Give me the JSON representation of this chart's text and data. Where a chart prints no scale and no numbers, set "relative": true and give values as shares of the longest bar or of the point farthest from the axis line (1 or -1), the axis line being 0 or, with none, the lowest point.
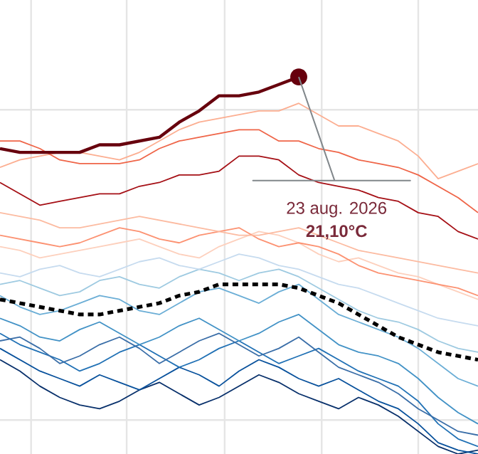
{
  "chart_data": {
    "type": "line",
    "relative": true,
    "grid": true,
    "categories": [
      null,
      null,
      null,
      null,
      null,
      null,
      null,
      null,
      null,
      null,
      null,
      null,
      null,
      null,
      null,
      null,
      null,
      null,
      null,
      null,
      null,
      null,
      null,
      null,
      null
    ],
    "series": [
      {
        "color": "#08306b",
        "values": [
          0.25,
          0.22,
          0.18,
          0.15,
          0.13,
          0.12,
          0.14,
          0.17,
          0.19,
          0.16,
          0.13,
          0.15,
          0.18,
          0.21,
          0.19,
          0.16,
          0.14,
          0.12,
          0.15,
          0.13,
          0.1,
          0.06,
          0.02,
          0.0,
          0.01
        ]
      },
      {
        "color": "#08519c",
        "values": [
          0.28,
          0.25,
          0.22,
          0.2,
          0.18,
          0.21,
          0.19,
          0.17,
          0.2,
          0.23,
          0.21,
          0.18,
          0.22,
          0.25,
          0.23,
          0.2,
          0.18,
          0.2,
          0.17,
          0.14,
          0.12,
          0.08,
          0.03,
          0.01,
          0.0
        ]
      },
      {
        "color": "#2171b5",
        "values": [
          0.32,
          0.29,
          0.27,
          0.25,
          0.22,
          0.24,
          0.27,
          0.29,
          0.26,
          0.23,
          0.25,
          0.28,
          0.3,
          0.27,
          0.24,
          0.26,
          0.28,
          0.25,
          0.22,
          0.2,
          0.18,
          0.14,
          0.08,
          0.04,
          0.02
        ]
      },
      {
        "color": "#3a6ea8",
        "values": [
          0.3,
          0.31,
          0.28,
          0.24,
          0.26,
          0.29,
          0.31,
          0.28,
          0.24,
          0.27,
          0.3,
          0.32,
          0.29,
          0.26,
          0.28,
          0.31,
          0.27,
          0.23,
          0.21,
          0.19,
          0.16,
          0.12,
          0.09,
          0.06,
          0.05
        ]
      },
      {
        "color": "#4292c6",
        "values": [
          0.36,
          0.34,
          0.31,
          0.3,
          0.33,
          0.35,
          0.32,
          0.29,
          0.31,
          0.34,
          0.36,
          0.33,
          0.3,
          0.32,
          0.35,
          0.37,
          0.33,
          0.29,
          0.27,
          0.26,
          0.24,
          0.2,
          0.15,
          0.11,
          0.08
        ]
      },
      {
        "color": "#6baed6",
        "values": [
          0.42,
          0.39,
          0.37,
          0.38,
          0.4,
          0.42,
          0.41,
          0.38,
          0.37,
          0.4,
          0.43,
          0.44,
          0.42,
          0.4,
          0.43,
          0.45,
          0.41,
          0.37,
          0.35,
          0.33,
          0.31,
          0.28,
          0.24,
          0.2,
          0.18
        ]
      },
      {
        "color": "#9ecae1",
        "values": [
          0.45,
          0.46,
          0.44,
          0.42,
          0.43,
          0.46,
          0.47,
          0.45,
          0.44,
          0.47,
          0.49,
          0.48,
          0.46,
          0.48,
          0.49,
          0.47,
          0.44,
          0.41,
          0.38,
          0.36,
          0.35,
          0.33,
          0.3,
          0.28,
          0.27
        ]
      },
      {
        "color": "#c6dbef",
        "values": [
          0.48,
          0.47,
          0.49,
          0.5,
          0.48,
          0.47,
          0.49,
          0.51,
          0.52,
          0.5,
          0.49,
          0.51,
          0.53,
          0.52,
          0.5,
          0.49,
          0.47,
          0.45,
          0.44,
          0.42,
          0.4,
          0.38,
          0.36,
          0.35,
          0.34
        ]
      },
      {
        "color": "#000000",
        "line_style": "dashed",
        "values": [
          0.41,
          0.4,
          0.39,
          0.38,
          0.37,
          0.37,
          0.38,
          0.39,
          0.4,
          0.42,
          0.43,
          0.45,
          0.45,
          0.45,
          0.45,
          0.44,
          0.42,
          0.4,
          0.37,
          0.34,
          0.31,
          0.29,
          0.27,
          0.26,
          0.25
        ]
      },
      {
        "color": "#fdd0bd",
        "values": [
          0.55,
          0.54,
          0.52,
          0.53,
          0.54,
          0.55,
          0.56,
          0.57,
          0.55,
          0.53,
          0.52,
          0.55,
          0.57,
          0.59,
          0.58,
          0.56,
          0.53,
          0.51,
          0.52,
          0.5,
          0.48,
          0.47,
          0.45,
          0.43,
          0.41
        ]
      },
      {
        "color": "#fc9272",
        "values": [
          0.58,
          0.57,
          0.56,
          0.55,
          0.56,
          0.58,
          0.6,
          0.59,
          0.57,
          0.56,
          0.58,
          0.59,
          0.6,
          0.57,
          0.55,
          0.56,
          0.55,
          0.53,
          0.5,
          0.48,
          0.47,
          0.46,
          0.45,
          0.44,
          0.42
        ]
      },
      {
        "color": "#fcbba1",
        "values": [
          0.64,
          0.63,
          0.62,
          0.6,
          0.6,
          0.61,
          0.62,
          0.63,
          0.62,
          0.61,
          0.6,
          0.59,
          0.58,
          0.58,
          0.59,
          0.6,
          0.58,
          0.56,
          0.54,
          0.53,
          0.52,
          0.51,
          0.5,
          0.49,
          0.48
        ]
      },
      {
        "color": "#fcae91",
        "values": [
          0.76,
          0.78,
          0.79,
          0.8,
          0.8,
          0.79,
          0.78,
          0.8,
          0.83,
          0.86,
          0.88,
          0.89,
          0.9,
          0.91,
          0.91,
          0.93,
          0.9,
          0.87,
          0.87,
          0.85,
          0.83,
          0.79,
          0.73,
          0.75,
          0.77
        ]
      },
      {
        "color": "#ef6548",
        "values": [
          0.83,
          0.83,
          0.81,
          0.78,
          0.77,
          0.77,
          0.77,
          0.78,
          0.81,
          0.83,
          0.84,
          0.85,
          0.86,
          0.86,
          0.83,
          0.83,
          0.81,
          0.8,
          0.78,
          0.77,
          0.76,
          0.74,
          0.71,
          0.68,
          0.64
        ]
      },
      {
        "color": "#a50f15",
        "values": [
          0.72,
          0.69,
          0.66,
          0.67,
          0.68,
          0.69,
          0.69,
          0.71,
          0.72,
          0.74,
          0.74,
          0.75,
          0.79,
          0.79,
          0.78,
          0.74,
          0.72,
          0.71,
          0.7,
          0.68,
          0.67,
          0.64,
          0.63,
          0.59,
          0.57
        ]
      },
      {
        "color": "#67000d",
        "values": [
          0.81,
          0.8,
          0.8,
          0.8,
          0.8,
          0.82,
          0.82,
          0.83,
          0.84,
          0.88,
          0.91,
          0.95,
          0.95,
          0.96,
          0.98,
          1.0,
          null,
          null,
          null,
          null,
          null,
          null,
          null,
          null,
          null
        ]
      }
    ],
    "annotations": [
      "23 aug. 2026",
      "21,10°C"
    ]
  }
}
